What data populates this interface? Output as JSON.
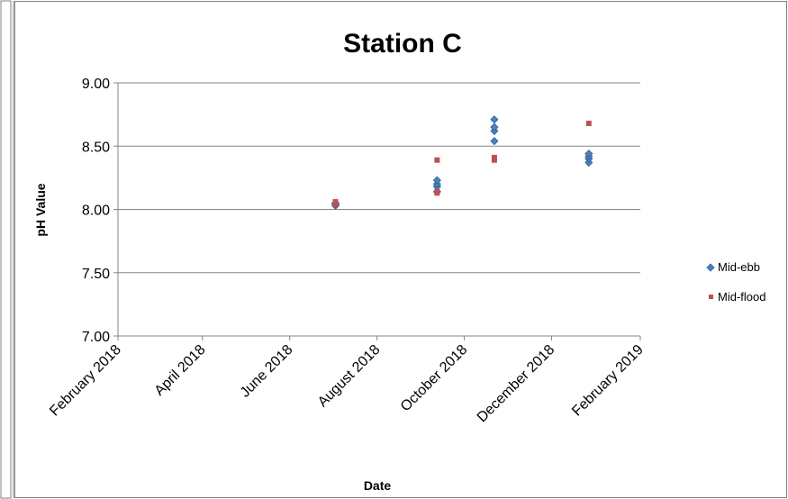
{
  "chart_data": {
    "type": "scatter",
    "title": "Station C",
    "xlabel": "Date",
    "ylabel": "pH Value",
    "x_axis_type": "date",
    "xlim": [
      "2018-02-01",
      "2019-02-01"
    ],
    "ylim": [
      7.0,
      9.0
    ],
    "x_ticks": [
      "2018-02-01",
      "2018-04-01",
      "2018-06-01",
      "2018-08-01",
      "2018-10-01",
      "2018-12-01",
      "2019-02-01"
    ],
    "x_tick_labels": [
      "February 2018",
      "April 2018",
      "June 2018",
      "August 2018",
      "October 2018",
      "December 2018",
      "February 2019"
    ],
    "y_ticks": [
      7.0,
      7.5,
      8.0,
      8.5,
      9.0
    ],
    "y_tick_labels": [
      "7.00",
      "7.50",
      "8.00",
      "8.50",
      "9.00"
    ],
    "grid": "horizontal",
    "legend_position": "right",
    "series": [
      {
        "name": "Mid-ebb",
        "marker": "diamond",
        "color": "#4F81BD",
        "points": [
          {
            "x": "2018-07-03",
            "y": 8.03
          },
          {
            "x": "2018-07-03",
            "y": 8.04
          },
          {
            "x": "2018-07-03",
            "y": 8.05
          },
          {
            "x": "2018-09-12",
            "y": 8.14
          },
          {
            "x": "2018-09-12",
            "y": 8.18
          },
          {
            "x": "2018-09-12",
            "y": 8.2
          },
          {
            "x": "2018-09-12",
            "y": 8.23
          },
          {
            "x": "2018-10-22",
            "y": 8.54
          },
          {
            "x": "2018-10-22",
            "y": 8.62
          },
          {
            "x": "2018-10-22",
            "y": 8.65
          },
          {
            "x": "2018-10-22",
            "y": 8.71
          },
          {
            "x": "2018-12-27",
            "y": 8.37
          },
          {
            "x": "2018-12-27",
            "y": 8.4
          },
          {
            "x": "2018-12-27",
            "y": 8.42
          },
          {
            "x": "2018-12-27",
            "y": 8.44
          }
        ]
      },
      {
        "name": "Mid-flood",
        "marker": "square",
        "color": "#C0504D",
        "points": [
          {
            "x": "2018-07-03",
            "y": 8.04
          },
          {
            "x": "2018-07-03",
            "y": 8.06
          },
          {
            "x": "2018-09-12",
            "y": 8.13
          },
          {
            "x": "2018-09-12",
            "y": 8.14
          },
          {
            "x": "2018-09-12",
            "y": 8.39
          },
          {
            "x": "2018-10-22",
            "y": 8.39
          },
          {
            "x": "2018-10-22",
            "y": 8.41
          },
          {
            "x": "2018-12-27",
            "y": 8.68
          }
        ]
      }
    ]
  }
}
